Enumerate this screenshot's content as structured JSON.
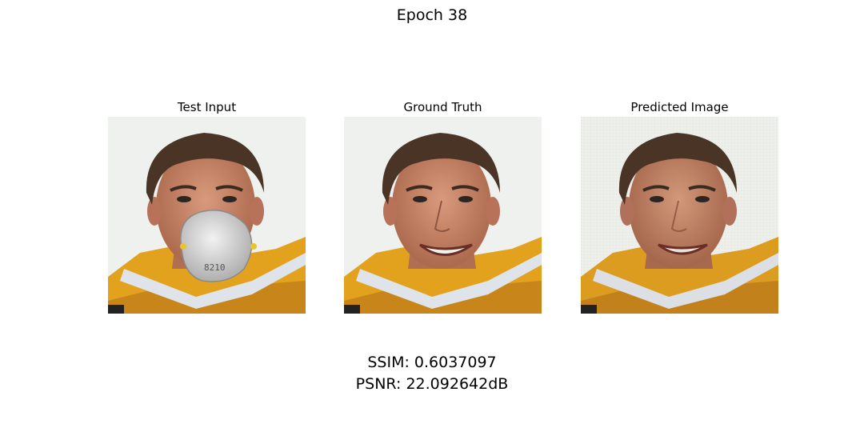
{
  "figure": {
    "title": "Epoch 38",
    "panels": [
      {
        "title": "Test Input",
        "has_mask": true,
        "mask_label": "8210"
      },
      {
        "title": "Ground Truth",
        "has_mask": false
      },
      {
        "title": "Predicted Image",
        "has_mask": false
      }
    ],
    "metrics": {
      "ssim": "SSIM: 0.6037097",
      "psnr": "PSNR: 22.092642dB"
    }
  },
  "colors": {
    "background": "#ffffff",
    "skin": "#c9876b",
    "hair": "#4a3425",
    "jacket": "#e2a21e",
    "mask": "#dcdcdc"
  }
}
